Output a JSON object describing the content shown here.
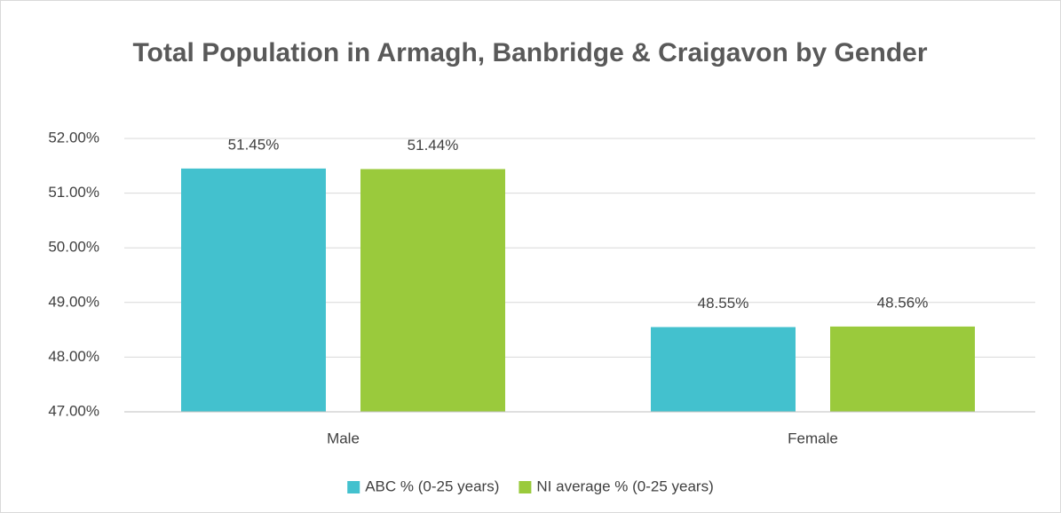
{
  "chart_data": {
    "type": "bar",
    "title": "Total Population in Armagh, Banbridge & Craigavon by Gender",
    "categories": [
      "Male",
      "Female"
    ],
    "series": [
      {
        "name": "ABC % (0-25 years)",
        "color": "#43c1ce",
        "values": [
          51.45,
          48.55
        ],
        "value_labels": [
          "51.45%",
          "48.55%"
        ]
      },
      {
        "name": "NI average % (0-25 years)",
        "color": "#9aca3c",
        "values": [
          51.44,
          48.56
        ],
        "value_labels": [
          "51.44%",
          "48.56%"
        ]
      }
    ],
    "ylim": [
      47,
      52
    ],
    "yticks": [
      {
        "value": 47,
        "label": "47.00%"
      },
      {
        "value": 48,
        "label": "48.00%"
      },
      {
        "value": 49,
        "label": "49.00%"
      },
      {
        "value": 50,
        "label": "50.00%"
      },
      {
        "value": 51,
        "label": "51.00%"
      },
      {
        "value": 52,
        "label": "52.00%"
      }
    ],
    "grid": true,
    "legend": "bottom"
  }
}
